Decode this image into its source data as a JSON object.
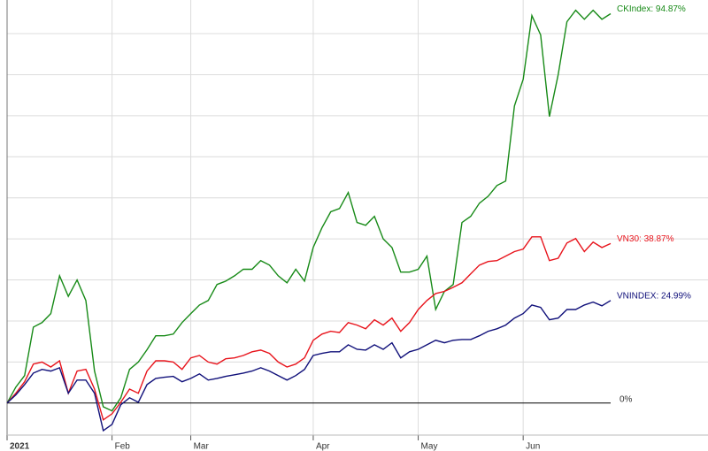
{
  "chart_data": {
    "type": "line",
    "categories": [
      "2021",
      null,
      null,
      null,
      null,
      null,
      null,
      null,
      null,
      null,
      null,
      null,
      "Feb",
      null,
      null,
      null,
      null,
      null,
      null,
      null,
      null,
      "Mar",
      null,
      null,
      null,
      null,
      null,
      null,
      null,
      null,
      null,
      null,
      null,
      null,
      null,
      "Apr",
      null,
      null,
      null,
      null,
      null,
      null,
      null,
      null,
      null,
      null,
      null,
      "May",
      null,
      null,
      null,
      null,
      null,
      null,
      null,
      null,
      null,
      null,
      null,
      "Jun",
      null,
      null,
      null,
      null,
      null,
      null,
      null,
      null,
      null,
      null
    ],
    "series": [
      {
        "name": "CKIndex: 94.87%",
        "color": "#178a17",
        "values": [
          0,
          3.9,
          6.7,
          18.5,
          19.6,
          21.8,
          31,
          26,
          30,
          25,
          7.8,
          -0.9,
          -1.9,
          1.3,
          8.2,
          10,
          13,
          16.4,
          16.4,
          16.8,
          19.6,
          21.8,
          23.9,
          25,
          28.9,
          29.7,
          31,
          32.6,
          32.6,
          34.7,
          33.6,
          31,
          29.3,
          32.6,
          29.7,
          37.9,
          42.7,
          46.6,
          47.4,
          51.3,
          44,
          43.3,
          45.5,
          40,
          37.9,
          31.9,
          31.9,
          32.6,
          35.8,
          22.8,
          27.2,
          28.9,
          44,
          45.5,
          48.7,
          50.4,
          53,
          54.1,
          72.4,
          78.9,
          94.4,
          89.7,
          69.8,
          80,
          92.9,
          95.7,
          93.5,
          95.7,
          93.5,
          94.87
        ]
      },
      {
        "name": "VN30: 38.87%",
        "color": "#e8141c",
        "values": [
          0,
          2.4,
          5.2,
          9.5,
          10,
          8.8,
          10.3,
          2.4,
          7.8,
          8.2,
          3.4,
          -4.1,
          -2.6,
          0.2,
          3.4,
          2.4,
          7.8,
          10.3,
          10.3,
          10,
          8.2,
          11,
          11.6,
          10,
          9.5,
          10.8,
          11,
          11.6,
          12.5,
          12.9,
          12.1,
          10,
          8.8,
          9.5,
          11,
          15.3,
          16.8,
          17.5,
          17.2,
          19.6,
          19,
          18.1,
          20.3,
          19,
          20.7,
          17.5,
          19.6,
          22.8,
          25,
          26.7,
          27.2,
          28.2,
          29.3,
          31.5,
          33.6,
          34.5,
          34.7,
          35.8,
          36.9,
          37.5,
          40.5,
          40.5,
          34.7,
          35.3,
          39,
          40.1,
          36.9,
          39.2,
          37.9,
          38.87
        ]
      },
      {
        "name": "VNINDEX: 24.99%",
        "color": "#10107a",
        "values": [
          0,
          2,
          4.5,
          7.3,
          8.2,
          7.8,
          8.6,
          2.4,
          5.6,
          5.6,
          2.4,
          -6.7,
          -5.2,
          -0.4,
          1.3,
          0.2,
          4.5,
          6,
          6.3,
          6.5,
          5.2,
          6,
          7.1,
          5.6,
          6,
          6.5,
          6.9,
          7.3,
          7.8,
          8.6,
          7.8,
          6.7,
          5.6,
          6.7,
          8.2,
          11.6,
          12.1,
          12.5,
          12.5,
          14.2,
          13.1,
          12.9,
          14.2,
          13.1,
          14.7,
          11,
          12.5,
          13.1,
          14.2,
          15.3,
          14.7,
          15.3,
          15.5,
          15.5,
          16.4,
          17.5,
          18.1,
          19,
          20.7,
          21.8,
          23.9,
          23.3,
          20.3,
          20.7,
          22.8,
          22.8,
          23.9,
          24.6,
          23.7,
          24.99
        ]
      }
    ],
    "ylim": [
      -7.8,
      98.2
    ],
    "yticks": [
      {
        "value": 0,
        "label": "0%"
      }
    ],
    "gridlines": [
      10,
      20,
      30,
      40,
      50,
      60,
      70,
      80,
      90
    ],
    "grid": true
  }
}
